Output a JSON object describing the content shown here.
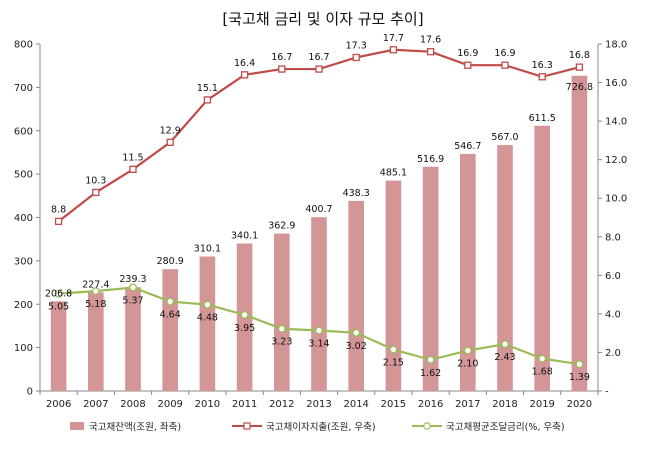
{
  "chart_data": {
    "type": "bar",
    "title": "[국고채 금리 및 이자 규모 추이]",
    "categories": [
      "2006",
      "2007",
      "2008",
      "2009",
      "2010",
      "2011",
      "2012",
      "2013",
      "2014",
      "2015",
      "2016",
      "2017",
      "2018",
      "2019",
      "2020"
    ],
    "left_axis": {
      "min": 0,
      "max": 800,
      "step": 100,
      "ticks": [
        "0",
        "100",
        "200",
        "300",
        "400",
        "500",
        "600",
        "700",
        "800"
      ]
    },
    "right_axis": {
      "min": 0,
      "max": 18,
      "step": 2,
      "ticks": [
        "-",
        "2.0",
        "4.0",
        "6.0",
        "8.0",
        "10.0",
        "12.0",
        "14.0",
        "16.0",
        "18.0"
      ]
    },
    "series": [
      {
        "name": "국고채잔액(조원, 좌축)",
        "type": "bar",
        "axis": "left",
        "color": "#d49596",
        "values": [
          206.8,
          227.4,
          239.3,
          280.9,
          310.1,
          340.1,
          362.9,
          400.7,
          438.3,
          485.1,
          516.9,
          546.7,
          567.0,
          611.5,
          726.8
        ],
        "labels": [
          "206.8",
          "227.4",
          "239.3",
          "280.9",
          "310.1",
          "340.1",
          "362.9",
          "400.7",
          "438.3",
          "485.1",
          "516.9",
          "546.7",
          "567.0",
          "611.5",
          "726.8"
        ]
      },
      {
        "name": "국고채이자지출(조원, 우축)",
        "type": "line",
        "axis": "right",
        "color": "#bf4b48",
        "marker": "square",
        "values": [
          8.8,
          10.3,
          11.5,
          12.9,
          15.1,
          16.4,
          16.7,
          16.7,
          17.3,
          17.7,
          17.6,
          16.9,
          16.9,
          16.3,
          16.8
        ],
        "labels": [
          "8.8",
          "10.3",
          "11.5",
          "12.9",
          "15.1",
          "16.4",
          "16.7",
          "16.7",
          "17.3",
          "17.7",
          "17.6",
          "16.9",
          "16.9",
          "16.3",
          "16.8"
        ]
      },
      {
        "name": "국고채평균조달금리(%, 우축)",
        "type": "line",
        "axis": "right",
        "color": "#9bbb59",
        "marker": "circle",
        "values": [
          5.05,
          5.18,
          5.37,
          4.64,
          4.48,
          3.95,
          3.23,
          3.14,
          3.02,
          2.15,
          1.62,
          2.1,
          2.43,
          1.68,
          1.39
        ],
        "labels": [
          "5.05",
          "5.18",
          "5.37",
          "4.64",
          "4.48",
          "3.95",
          "3.23",
          "3.14",
          "3.02",
          "2.15",
          "1.62",
          "2.10",
          "2.43",
          "1.68",
          "1.39"
        ]
      }
    ],
    "legend_position": "bottom"
  }
}
